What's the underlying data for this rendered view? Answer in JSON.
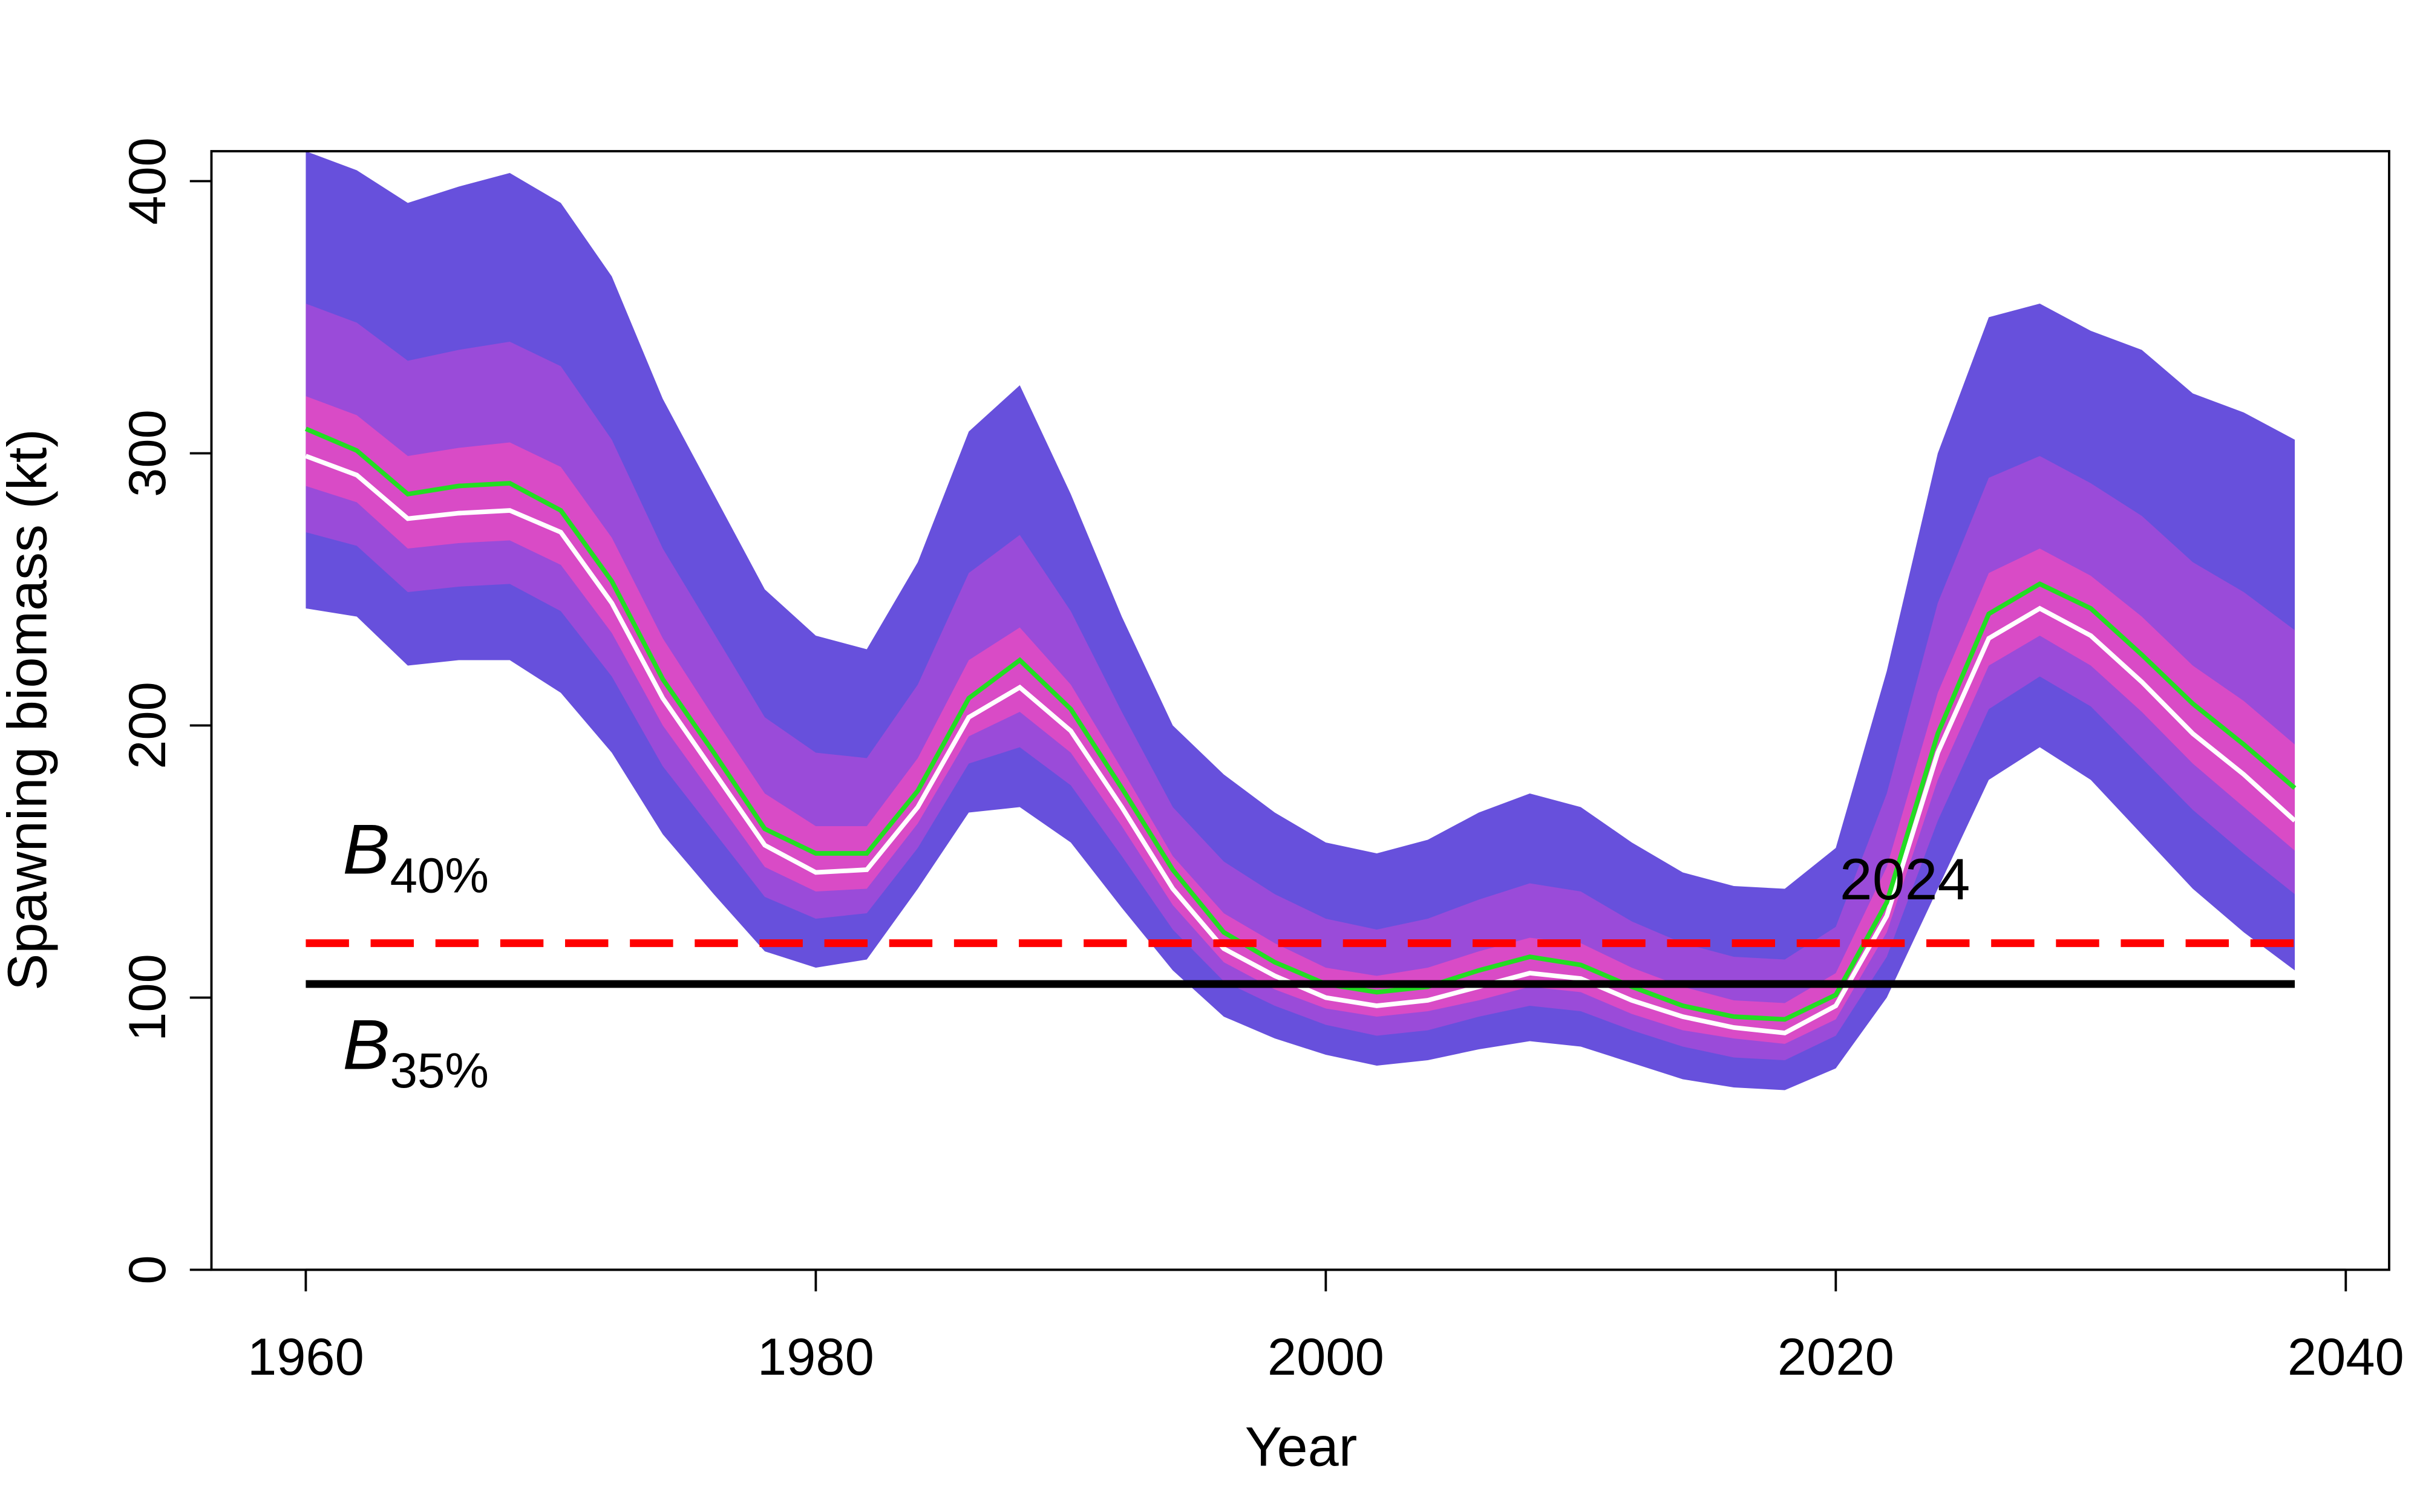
{
  "chart_data": {
    "type": "fan",
    "xlabel": "Year",
    "ylabel": "Spawning biomass (kt)",
    "x": [
      1960,
      1962,
      1964,
      1966,
      1968,
      1970,
      1972,
      1974,
      1976,
      1978,
      1980,
      1982,
      1984,
      1986,
      1988,
      1990,
      1992,
      1994,
      1996,
      1998,
      2000,
      2002,
      2004,
      2006,
      2008,
      2010,
      2012,
      2014,
      2016,
      2018,
      2020,
      2022,
      2024,
      2026,
      2028,
      2030,
      2032,
      2034,
      2036,
      2038
    ],
    "bands": [
      {
        "color": "#6750dc",
        "upper": [
          411,
          404,
          392,
          398,
          403,
          392,
          365,
          320,
          285,
          250,
          233,
          228,
          260,
          308,
          325,
          285,
          240,
          200,
          182,
          168,
          157,
          153,
          158,
          168,
          175,
          170,
          157,
          146,
          141,
          140,
          155,
          220,
          300,
          350,
          355,
          345,
          338,
          322,
          315,
          305
        ],
        "lower": [
          243,
          240,
          222,
          224,
          224,
          212,
          190,
          160,
          138,
          117,
          111,
          114,
          140,
          168,
          170,
          157,
          133,
          110,
          93,
          85,
          79,
          75,
          77,
          81,
          84,
          82,
          76,
          70,
          67,
          66,
          74,
          100,
          140,
          180,
          192,
          180,
          160,
          140,
          124,
          110
        ]
      },
      {
        "color": "#9a4bd9",
        "upper": [
          355,
          348,
          334,
          338,
          341,
          332,
          305,
          265,
          234,
          203,
          190,
          188,
          215,
          256,
          270,
          242,
          205,
          170,
          150,
          138,
          129,
          125,
          129,
          136,
          142,
          139,
          128,
          120,
          115,
          114,
          126,
          175,
          245,
          291,
          299,
          289,
          277,
          260,
          249,
          235
        ],
        "lower": [
          271,
          266,
          249,
          251,
          252,
          242,
          218,
          185,
          161,
          137,
          129,
          131,
          155,
          186,
          192,
          178,
          152,
          125,
          106,
          97,
          90,
          86,
          88,
          93,
          97,
          95,
          88,
          82,
          78,
          77,
          86,
          115,
          165,
          206,
          218,
          207,
          188,
          169,
          153,
          138
        ]
      },
      {
        "color": "#d94bc6",
        "upper": [
          321,
          314,
          299,
          302,
          304,
          295,
          269,
          232,
          203,
          175,
          163,
          163,
          188,
          224,
          236,
          215,
          184,
          152,
          131,
          120,
          111,
          108,
          111,
          117,
          122,
          120,
          111,
          104,
          99,
          98,
          109,
          148,
          212,
          256,
          265,
          255,
          240,
          222,
          209,
          193
        ],
        "lower": [
          288,
          282,
          265,
          267,
          268,
          259,
          234,
          200,
          174,
          148,
          139,
          140,
          164,
          196,
          205,
          190,
          163,
          134,
          113,
          103,
          96,
          93,
          95,
          99,
          104,
          102,
          94,
          88,
          85,
          83,
          92,
          124,
          180,
          222,
          233,
          222,
          205,
          186,
          170,
          154
        ]
      }
    ],
    "series": [
      {
        "color": "#ffffff",
        "values": [
          299,
          292,
          276,
          278,
          279,
          271,
          245,
          210,
          183,
          156,
          146,
          147,
          170,
          203,
          214,
          198,
          170,
          140,
          118,
          108,
          100,
          97,
          99,
          104,
          109,
          107,
          99,
          93,
          89,
          87,
          97,
          130,
          190,
          232,
          243,
          233,
          216,
          197,
          182,
          165
        ]
      },
      {
        "color": "#22dd22",
        "values": [
          309,
          301,
          285,
          288,
          289,
          279,
          253,
          217,
          190,
          162,
          153,
          153,
          176,
          210,
          224,
          206,
          177,
          147,
          124,
          113,
          105,
          102,
          104,
          110,
          115,
          112,
          104,
          97,
          93,
          92,
          101,
          135,
          197,
          241,
          252,
          243,
          226,
          208,
          193,
          177
        ]
      }
    ],
    "hlines": [
      {
        "value": 120,
        "color": "#ff0000",
        "dashed": true,
        "label": "B",
        "label_sub": "40%"
      },
      {
        "value": 105,
        "color": "#000000",
        "dashed": false,
        "label": "B",
        "label_sub": "35%"
      }
    ],
    "annotations": [
      {
        "text": "2024",
        "color": "#1a6e1a"
      }
    ],
    "xlim": [
      1956.3,
      2041.7
    ],
    "xticks": [
      1960,
      1980,
      2000,
      2020,
      2040
    ],
    "ylim": [
      0,
      411
    ],
    "yticks": [
      0,
      100,
      200,
      300,
      400
    ]
  }
}
